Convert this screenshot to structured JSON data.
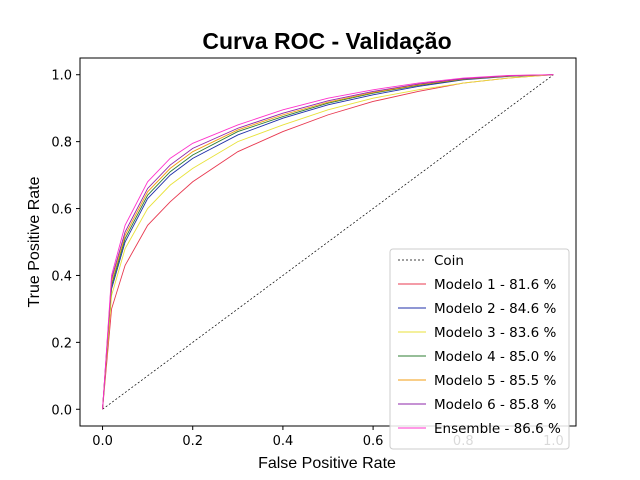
{
  "chart_data": {
    "type": "line",
    "title": "Curva ROC - Validação",
    "xlabel": "False Positive Rate",
    "ylabel": "True Positive Rate",
    "xlim": [
      -0.05,
      1.05
    ],
    "ylim": [
      -0.05,
      1.05
    ],
    "xticks": [
      "0.0",
      "0.2",
      "0.4",
      "0.6",
      "0.8",
      "1.0"
    ],
    "yticks": [
      "0.0",
      "0.2",
      "0.4",
      "0.6",
      "0.8",
      "1.0"
    ],
    "grid": false,
    "legend_position": "lower-right",
    "series": [
      {
        "name": "Coin",
        "color": "#000000",
        "dashed": true,
        "x": [
          0,
          1
        ],
        "y": [
          0,
          1
        ]
      },
      {
        "name": "Modelo 1 - 81.6 %",
        "color": "#e8384f",
        "x": [
          0,
          0.02,
          0.05,
          0.1,
          0.15,
          0.2,
          0.3,
          0.4,
          0.5,
          0.6,
          0.7,
          0.8,
          0.9,
          1.0
        ],
        "y": [
          0,
          0.3,
          0.43,
          0.55,
          0.62,
          0.68,
          0.77,
          0.83,
          0.88,
          0.92,
          0.95,
          0.975,
          0.99,
          1.0
        ]
      },
      {
        "name": "Modelo 2 - 84.6 %",
        "color": "#1f2fa8",
        "x": [
          0,
          0.02,
          0.05,
          0.1,
          0.15,
          0.2,
          0.3,
          0.4,
          0.5,
          0.6,
          0.7,
          0.8,
          0.9,
          1.0
        ],
        "y": [
          0,
          0.36,
          0.5,
          0.63,
          0.7,
          0.75,
          0.82,
          0.87,
          0.91,
          0.94,
          0.965,
          0.985,
          0.995,
          1.0
        ]
      },
      {
        "name": "Modelo 3 - 83.6 %",
        "color": "#e8e23a",
        "x": [
          0,
          0.02,
          0.05,
          0.1,
          0.15,
          0.2,
          0.3,
          0.4,
          0.5,
          0.6,
          0.7,
          0.8,
          0.9,
          1.0
        ],
        "y": [
          0,
          0.34,
          0.48,
          0.6,
          0.67,
          0.72,
          0.8,
          0.85,
          0.895,
          0.93,
          0.955,
          0.975,
          0.99,
          1.0
        ]
      },
      {
        "name": "Modelo 4 - 85.0 %",
        "color": "#2e7d32",
        "x": [
          0,
          0.02,
          0.05,
          0.1,
          0.15,
          0.2,
          0.3,
          0.4,
          0.5,
          0.6,
          0.7,
          0.8,
          0.9,
          1.0
        ],
        "y": [
          0,
          0.37,
          0.51,
          0.64,
          0.71,
          0.76,
          0.83,
          0.875,
          0.915,
          0.945,
          0.968,
          0.986,
          0.996,
          1.0
        ]
      },
      {
        "name": "Modelo 5 - 85.5 %",
        "color": "#f39c12",
        "x": [
          0,
          0.02,
          0.05,
          0.1,
          0.15,
          0.2,
          0.3,
          0.4,
          0.5,
          0.6,
          0.7,
          0.8,
          0.9,
          1.0
        ],
        "y": [
          0,
          0.38,
          0.52,
          0.65,
          0.72,
          0.77,
          0.835,
          0.88,
          0.918,
          0.947,
          0.97,
          0.987,
          0.996,
          1.0
        ]
      },
      {
        "name": "Modelo 6 - 85.8 %",
        "color": "#8e24aa",
        "x": [
          0,
          0.02,
          0.05,
          0.1,
          0.15,
          0.2,
          0.3,
          0.4,
          0.5,
          0.6,
          0.7,
          0.8,
          0.9,
          1.0
        ],
        "y": [
          0,
          0.39,
          0.53,
          0.66,
          0.73,
          0.78,
          0.84,
          0.885,
          0.922,
          0.95,
          0.972,
          0.988,
          0.997,
          1.0
        ]
      },
      {
        "name": "Ensemble - 86.6 %",
        "color": "#ff33cc",
        "x": [
          0,
          0.02,
          0.05,
          0.1,
          0.15,
          0.2,
          0.3,
          0.4,
          0.5,
          0.6,
          0.7,
          0.8,
          0.9,
          1.0
        ],
        "y": [
          0,
          0.4,
          0.55,
          0.68,
          0.75,
          0.795,
          0.85,
          0.895,
          0.93,
          0.955,
          0.975,
          0.99,
          0.998,
          1.0
        ]
      }
    ]
  }
}
